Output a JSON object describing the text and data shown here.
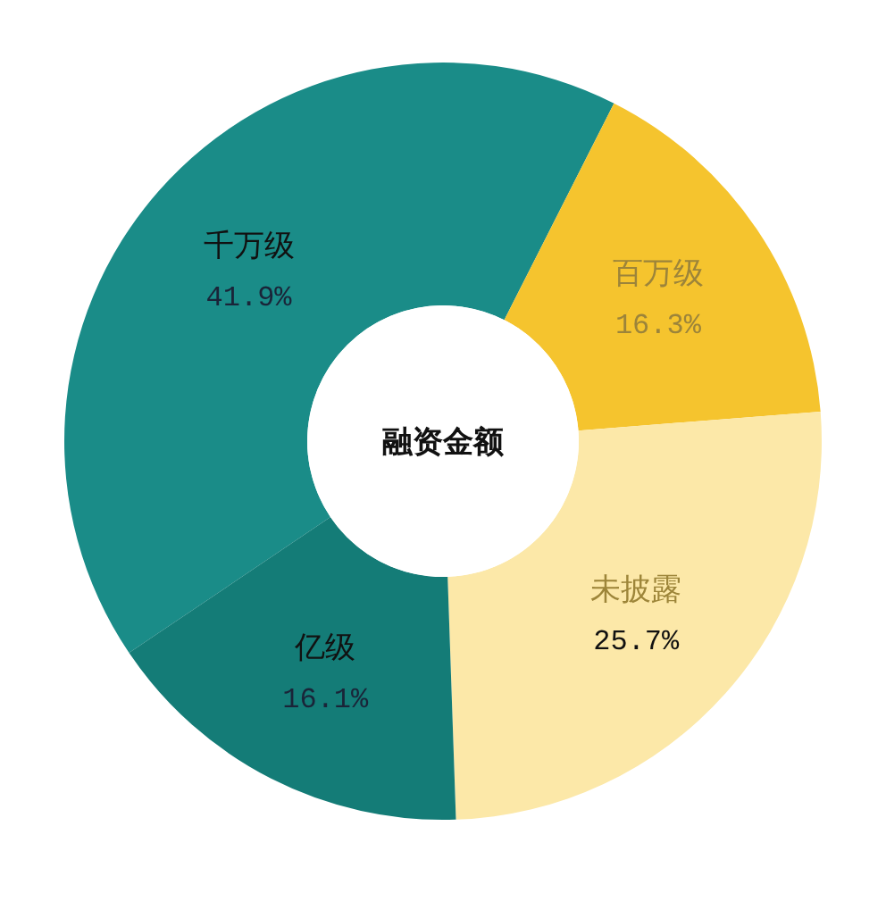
{
  "chart_data": {
    "type": "donut",
    "title": "融资金额",
    "categories": [
      "千万级",
      "百万级",
      "未披露",
      "亿级"
    ],
    "values": [
      41.9,
      16.3,
      25.7,
      16.1
    ],
    "value_labels": [
      "41.9%",
      "16.3%",
      "25.7%",
      "16.1%"
    ],
    "colors": [
      "#1a8c88",
      "#f5c42e",
      "#fce8a8",
      "#147c77"
    ]
  }
}
